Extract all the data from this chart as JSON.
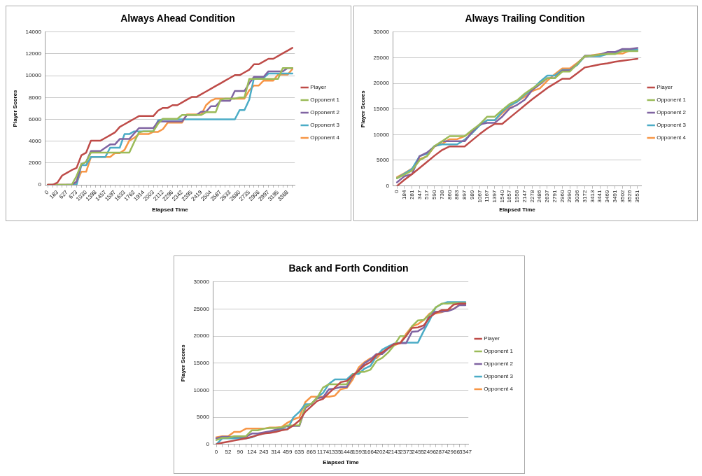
{
  "chart_data": [
    {
      "type": "line",
      "title": "Always Ahead Condition",
      "xlabel": "Elapsed Time",
      "ylabel": "Player Scores",
      "legend": "right",
      "grid": "y",
      "marker": "none",
      "line_style": "solid",
      "ylim": [
        0,
        14000
      ],
      "yticks": [
        0,
        2000,
        4000,
        6000,
        8000,
        10000,
        12000,
        14000
      ],
      "categories": [
        "0",
        null,
        "183",
        null,
        "627",
        null,
        "673",
        null,
        "1030",
        null,
        "1398",
        null,
        "1457",
        null,
        "1597",
        null,
        "1633",
        null,
        "1762",
        null,
        "1914",
        null,
        "2003",
        null,
        "2112",
        null,
        "2296",
        null,
        "2342",
        null,
        "2395",
        null,
        "2419",
        null,
        "2504",
        null,
        "2587",
        null,
        "2633",
        null,
        "2680",
        null,
        "2735",
        null,
        "2906",
        null,
        "2997",
        null,
        "3195",
        null,
        "3368",
        null
      ],
      "series": [
        {
          "name": "Player",
          "color": "#be4b48",
          "values": [
            0,
            0,
            200,
            850,
            1100,
            1350,
            1550,
            2700,
            2950,
            4050,
            4050,
            4050,
            4300,
            4550,
            4800,
            5300,
            5550,
            5800,
            6050,
            6300,
            6300,
            6300,
            6300,
            6800,
            7050,
            7050,
            7300,
            7300,
            7550,
            7800,
            8050,
            8050,
            8300,
            8550,
            8800,
            9050,
            9300,
            9550,
            9800,
            10050,
            10050,
            10300,
            10550,
            11050,
            11050,
            11300,
            11550,
            11550,
            11800,
            12050,
            12300,
            12550
          ]
        },
        {
          "name": "Opponent 1",
          "color": "#9bbb59",
          "values": [
            0,
            0,
            0,
            0,
            0,
            0,
            800,
            1900,
            2100,
            2950,
            2950,
            2950,
            2950,
            2950,
            2950,
            2950,
            2950,
            2950,
            3900,
            4800,
            4900,
            4900,
            4900,
            5600,
            6050,
            6050,
            6050,
            6050,
            6400,
            6400,
            6400,
            6400,
            6400,
            6650,
            6650,
            6650,
            7800,
            7900,
            7900,
            7900,
            8000,
            8000,
            9700,
            9700,
            9700,
            9700,
            9700,
            9700,
            9700,
            10700,
            10700,
            10700
          ]
        },
        {
          "name": "Opponent 2",
          "color": "#8064a2",
          "values": [
            0,
            0,
            0,
            0,
            0,
            0,
            300,
            1900,
            2100,
            3100,
            3100,
            3100,
            3400,
            3700,
            3700,
            4200,
            4200,
            4200,
            4700,
            5200,
            5200,
            5200,
            5200,
            5800,
            5800,
            5800,
            5800,
            5800,
            5800,
            6400,
            6400,
            6400,
            6700,
            6700,
            7200,
            7200,
            7700,
            7700,
            7700,
            8600,
            8600,
            8600,
            9300,
            9900,
            9900,
            9900,
            10400,
            10400,
            10400,
            10400,
            10700,
            10700
          ]
        },
        {
          "name": "Opponent 3",
          "color": "#4bacc6",
          "values": [
            null,
            null,
            null,
            null,
            0,
            0,
            0,
            1800,
            1800,
            2550,
            2550,
            2550,
            2550,
            3400,
            3400,
            3400,
            4650,
            4650,
            4900,
            4900,
            4900,
            4900,
            4900,
            5900,
            6000,
            6000,
            6000,
            6000,
            6000,
            6000,
            6000,
            6000,
            6000,
            6000,
            6000,
            6000,
            6000,
            6000,
            6000,
            6000,
            6850,
            6850,
            7800,
            9800,
            9800,
            9800,
            10200,
            10200,
            10200,
            10200,
            10200,
            10200
          ]
        },
        {
          "name": "Opponent 4",
          "color": "#f79646",
          "values": [
            0,
            0,
            0,
            0,
            0,
            0,
            200,
            1200,
            1200,
            2550,
            2550,
            2550,
            2550,
            2550,
            2900,
            2900,
            3200,
            4050,
            4300,
            4650,
            4650,
            4650,
            4850,
            4850,
            5100,
            5700,
            5700,
            5700,
            5700,
            6450,
            6450,
            6450,
            6450,
            7300,
            7700,
            7900,
            7900,
            7900,
            7900,
            7900,
            7900,
            7900,
            8650,
            9100,
            9100,
            9550,
            9550,
            9550,
            10100,
            10100,
            10100,
            10600
          ]
        }
      ]
    },
    {
      "type": "line",
      "title": "Always Trailing Condition",
      "xlabel": "Elapsed Time",
      "ylabel": "Player Scores",
      "legend": "right",
      "grid": "y",
      "marker": "none",
      "line_style": "solid",
      "ylim": [
        0,
        30000
      ],
      "yticks": [
        0,
        5000,
        10000,
        15000,
        20000,
        25000,
        30000
      ],
      "categories": [
        "0",
        "184",
        "281",
        "347",
        "517",
        "590",
        "738",
        "860",
        "883",
        "897",
        "989",
        "1067",
        "1167",
        "1397",
        "1540",
        "1657",
        "1958",
        "2147",
        "2278",
        "2486",
        "2637",
        "2791",
        "2960",
        "2990",
        "3036",
        "3172",
        "3413",
        "3441",
        "3469",
        "3491",
        "3502",
        "3526",
        "3551"
      ],
      "series": [
        {
          "name": "Player",
          "color": "#be4b48",
          "values": [
            0,
            1200,
            2300,
            3500,
            4700,
            5900,
            7000,
            7700,
            7700,
            7700,
            8900,
            10100,
            11200,
            12100,
            12100,
            13300,
            14500,
            15700,
            16900,
            18000,
            19100,
            20000,
            20900,
            20900,
            22000,
            23100,
            23400,
            23700,
            23900,
            24200,
            24400,
            24600,
            24800
          ]
        },
        {
          "name": "Opponent 1",
          "color": "#9bbb59",
          "values": [
            1500,
            2200,
            3000,
            5000,
            5800,
            7800,
            8700,
            9700,
            9700,
            9700,
            10900,
            12000,
            13500,
            13500,
            14800,
            16000,
            16700,
            18000,
            19000,
            20000,
            21000,
            21000,
            22300,
            22300,
            23800,
            25300,
            25400,
            25600,
            25700,
            25700,
            26300,
            26300,
            26300
          ]
        },
        {
          "name": "Opponent 2",
          "color": "#8064a2",
          "values": [
            700,
            1900,
            2300,
            5800,
            6500,
            7700,
            8700,
            8700,
            8700,
            8700,
            10500,
            12000,
            12300,
            12300,
            13500,
            15100,
            15800,
            16800,
            18700,
            19800,
            21000,
            21000,
            22500,
            22500,
            23800,
            25400,
            25400,
            25600,
            26100,
            26100,
            26700,
            26700,
            26900
          ]
        },
        {
          "name": "Opponent 3",
          "color": "#4bacc6",
          "values": [
            1500,
            2400,
            3300,
            5800,
            6300,
            7800,
            8100,
            8100,
            8100,
            9000,
            10300,
            11800,
            12800,
            12800,
            14500,
            15700,
            16400,
            17800,
            18800,
            20300,
            21500,
            21500,
            22600,
            22600,
            23600,
            25300,
            25300,
            25300,
            25700,
            25800,
            26500,
            26500,
            26600
          ]
        },
        {
          "name": "Opponent 4",
          "color": "#f79646",
          "values": [
            1700,
            2500,
            3400,
            5200,
            5800,
            7700,
            8200,
            9100,
            9100,
            9700,
            10600,
            11900,
            12800,
            12800,
            14200,
            15500,
            16500,
            17400,
            18500,
            19000,
            20500,
            21800,
            22900,
            22900,
            24000,
            25200,
            25500,
            25700,
            25800,
            25800,
            25800,
            26400,
            26400
          ]
        }
      ]
    },
    {
      "type": "line",
      "title": "Back and Forth Condition",
      "xlabel": "Elapsed Time",
      "ylabel": "Player Scores",
      "legend": "right",
      "grid": "y",
      "marker": "none",
      "line_style": "solid",
      "ylim": [
        0,
        30000
      ],
      "yticks": [
        0,
        5000,
        10000,
        15000,
        20000,
        25000,
        30000
      ],
      "categories": [
        "0",
        null,
        "52",
        null,
        "90",
        null,
        "124",
        null,
        "243",
        null,
        "314",
        null,
        "459",
        null,
        "635",
        null,
        "865",
        null,
        "1174",
        null,
        "1335",
        null,
        "1448",
        null,
        "1593",
        null,
        "1664",
        null,
        "2024",
        null,
        "2143",
        null,
        "2373",
        null,
        "2455",
        null,
        "2496",
        null,
        "2874",
        null,
        "2966",
        null,
        "3347"
      ],
      "series": [
        {
          "name": "Player",
          "color": "#be4b48",
          "values": [
            0,
            300,
            500,
            700,
            900,
            1100,
            1400,
            1700,
            2000,
            2100,
            2300,
            2600,
            2800,
            3500,
            4400,
            6000,
            7000,
            8000,
            8400,
            9500,
            10500,
            11500,
            11700,
            12700,
            13600,
            14600,
            15200,
            16500,
            17000,
            17800,
            18500,
            18700,
            20000,
            21500,
            21600,
            22000,
            23500,
            24300,
            24800,
            24800,
            25800,
            26000,
            26000
          ]
        },
        {
          "name": "Opponent 1",
          "color": "#9bbb59",
          "values": [
            800,
            1200,
            1200,
            1500,
            1500,
            1500,
            2600,
            2600,
            2900,
            3000,
            3000,
            3100,
            3500,
            3500,
            3500,
            7000,
            7500,
            8600,
            10500,
            11100,
            11100,
            11100,
            11100,
            12900,
            13400,
            13400,
            13800,
            15400,
            16000,
            17000,
            18300,
            20000,
            20000,
            21800,
            22900,
            23000,
            24000,
            25300,
            26000,
            26000,
            26100,
            26100,
            26100
          ]
        },
        {
          "name": "Opponent 2",
          "color": "#8064a2",
          "values": [
            1100,
            1400,
            1400,
            1400,
            1400,
            1400,
            2000,
            2000,
            2200,
            2400,
            2700,
            3000,
            3400,
            3400,
            3400,
            6700,
            7500,
            8500,
            8700,
            10200,
            10300,
            10600,
            10600,
            12600,
            13700,
            15000,
            15700,
            16700,
            16700,
            17700,
            18600,
            18700,
            18700,
            20800,
            20900,
            21600,
            24000,
            24500,
            24500,
            24600,
            25000,
            25700,
            25700
          ]
        },
        {
          "name": "Opponent 3",
          "color": "#4bacc6",
          "values": [
            0,
            1100,
            1100,
            1100,
            1100,
            1100,
            1300,
            1800,
            2000,
            2200,
            2600,
            2800,
            2800,
            5000,
            6000,
            7400,
            7400,
            8700,
            9500,
            11200,
            12000,
            12000,
            12000,
            13000,
            13000,
            14000,
            14500,
            16300,
            17500,
            18100,
            18600,
            18800,
            18800,
            18800,
            18800,
            21000,
            23000,
            25300,
            25900,
            26300,
            26300,
            26300,
            26300
          ]
        },
        {
          "name": "Opponent 4",
          "color": "#f79646",
          "values": [
            1300,
            1500,
            1500,
            2300,
            2300,
            2900,
            2900,
            2900,
            2900,
            3100,
            3100,
            3200,
            4000,
            4600,
            5000,
            7800,
            8800,
            8800,
            8800,
            8800,
            9000,
            10200,
            10400,
            12000,
            14200,
            15200,
            15900,
            15900,
            17000,
            17800,
            18300,
            18700,
            20400,
            21800,
            22200,
            23000,
            24200,
            24200,
            24400,
            24900,
            25000,
            25800,
            25800
          ]
        }
      ]
    }
  ]
}
